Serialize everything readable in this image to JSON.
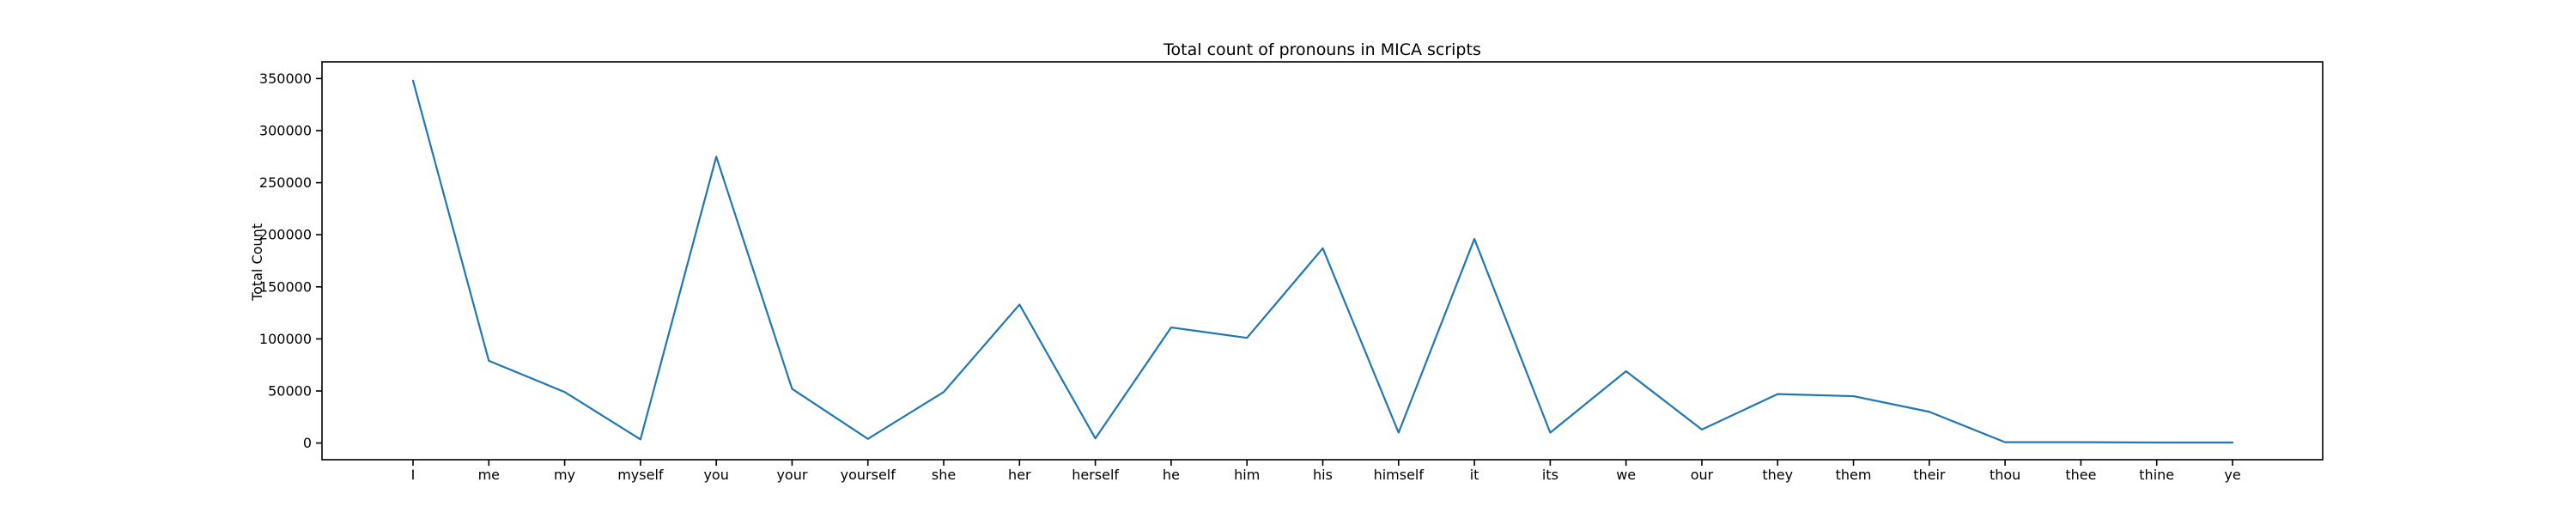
{
  "chart_data": {
    "type": "line",
    "title": "Total count of pronouns in MICA scripts",
    "xlabel": "",
    "ylabel": "Total Count",
    "categories": [
      "I",
      "me",
      "my",
      "myself",
      "you",
      "your",
      "yourself",
      "she",
      "her",
      "herself",
      "he",
      "him",
      "his",
      "himself",
      "it",
      "its",
      "we",
      "our",
      "they",
      "them",
      "their",
      "thou",
      "thee",
      "thine",
      "ye"
    ],
    "series": [
      {
        "values": [
          348000,
          79000,
          49000,
          3500,
          275000,
          52000,
          4000,
          49000,
          133000,
          4500,
          111000,
          101000,
          187000,
          10000,
          196000,
          10000,
          69000,
          13000,
          47000,
          45000,
          30000,
          800,
          800,
          500,
          500
        ]
      }
    ],
    "ylim": [
      -16000,
      366000
    ],
    "yticks": [
      0,
      50000,
      100000,
      150000,
      200000,
      250000,
      300000,
      350000
    ],
    "ytick_labels": [
      "0",
      "50000",
      "100000",
      "150000",
      "200000",
      "250000",
      "300000",
      "350000"
    ],
    "grid": false,
    "legend": "none",
    "colors": {
      "line": "#1f77b4",
      "axes": "#000000",
      "background": "#ffffff"
    }
  }
}
